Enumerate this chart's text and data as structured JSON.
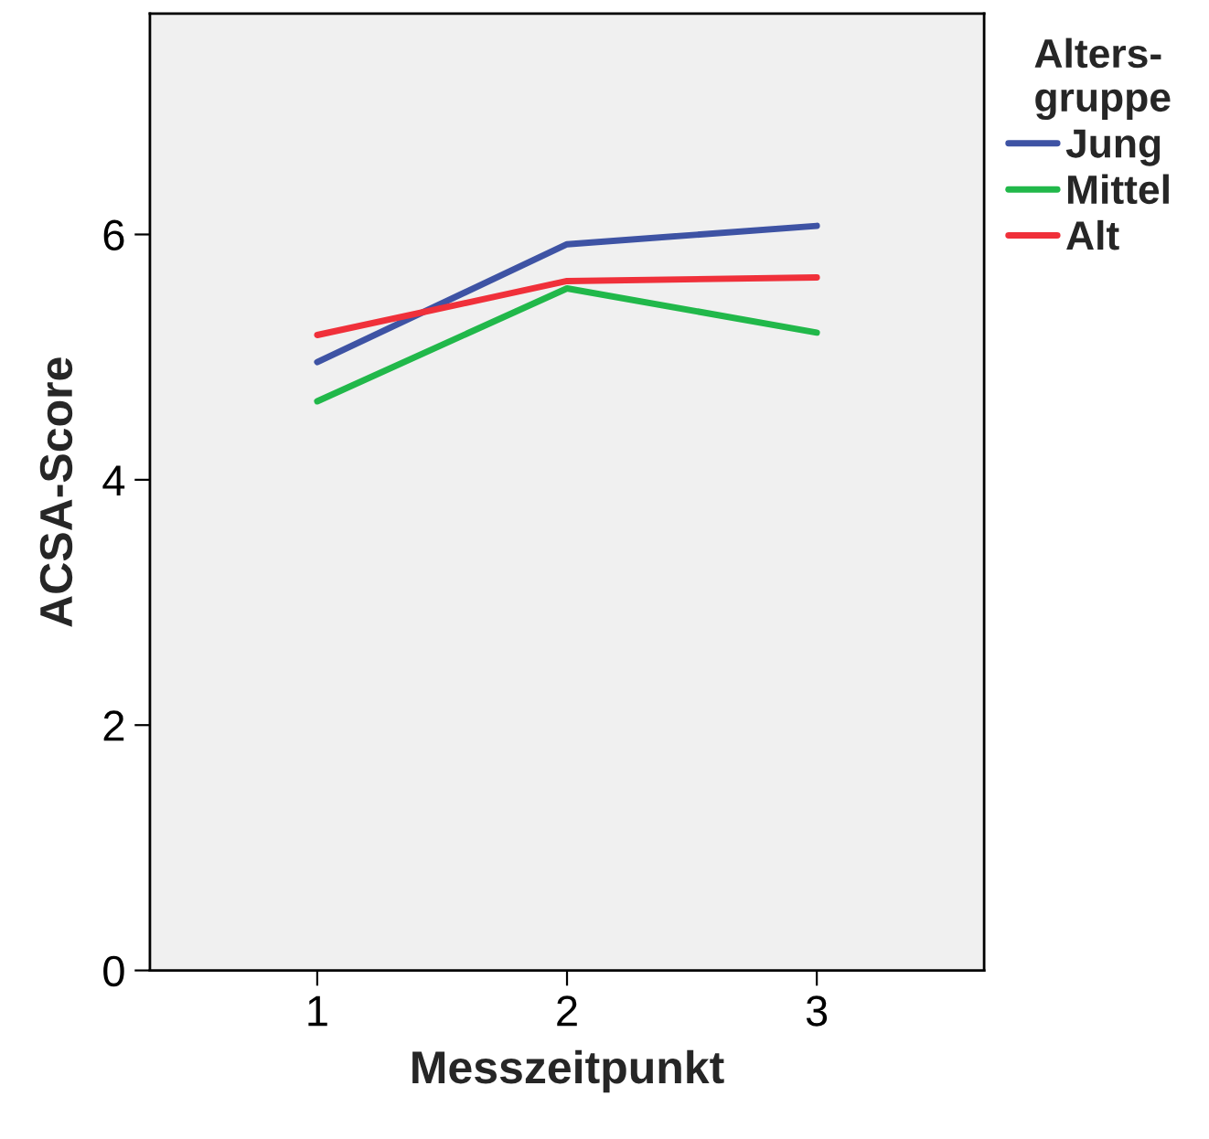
{
  "chart_data": {
    "type": "line",
    "xlabel": "Messzeitpunkt",
    "ylabel": "ACSA-Score",
    "legend_title": "Alters-\ngruppe",
    "categories": [
      "1",
      "2",
      "3"
    ],
    "series": [
      {
        "name": "Jung",
        "color": "#3e53a4",
        "values": [
          4.96,
          5.92,
          6.07
        ]
      },
      {
        "name": "Mittel",
        "color": "#21b84a",
        "values": [
          4.64,
          5.56,
          5.2
        ]
      },
      {
        "name": "Alt",
        "color": "#f0303a",
        "values": [
          5.18,
          5.62,
          5.65
        ]
      }
    ],
    "ylim": [
      0,
      7.8
    ],
    "yticks": [
      0,
      2,
      4,
      6
    ],
    "grid": false,
    "legend": "right",
    "marker": "none",
    "line_style": "solid"
  }
}
